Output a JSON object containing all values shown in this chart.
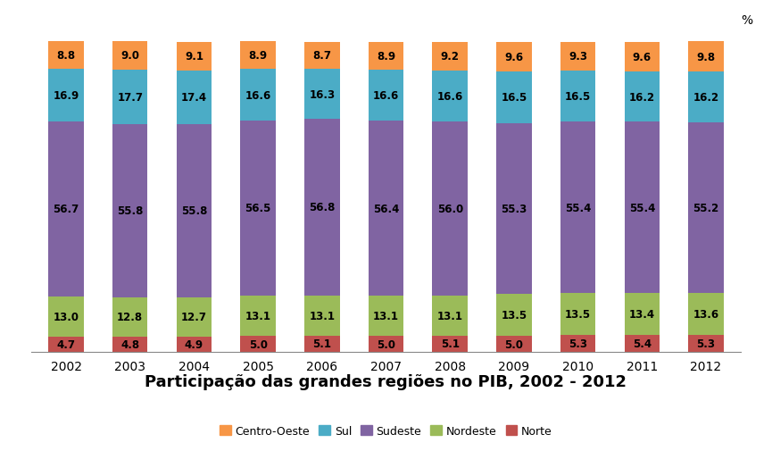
{
  "years": [
    2002,
    2003,
    2004,
    2005,
    2006,
    2007,
    2008,
    2009,
    2010,
    2011,
    2012
  ],
  "norte": [
    4.7,
    4.8,
    4.9,
    5.0,
    5.1,
    5.0,
    5.1,
    5.0,
    5.3,
    5.4,
    5.3
  ],
  "nordeste": [
    13.0,
    12.8,
    12.7,
    13.1,
    13.1,
    13.1,
    13.1,
    13.5,
    13.5,
    13.4,
    13.6
  ],
  "sudeste": [
    56.7,
    55.8,
    55.8,
    56.5,
    56.8,
    56.4,
    56.0,
    55.3,
    55.4,
    55.4,
    55.2
  ],
  "sul": [
    16.9,
    17.7,
    17.4,
    16.6,
    16.3,
    16.6,
    16.6,
    16.5,
    16.5,
    16.2,
    16.2
  ],
  "centro_oeste": [
    8.8,
    9.0,
    9.1,
    8.9,
    8.7,
    8.9,
    9.2,
    9.6,
    9.3,
    9.6,
    9.8
  ],
  "colors": {
    "norte": "#c0504d",
    "nordeste": "#9bbb59",
    "sudeste": "#8064a2",
    "sul": "#4bacc6",
    "centro_oeste": "#f79646"
  },
  "title": "Participação das grandes regiões no PIB, 2002 - 2012",
  "title_fontsize": 13,
  "ylabel": "%",
  "bar_width": 0.55,
  "ylim": [
    0,
    105
  ],
  "background_color": "#ffffff",
  "label_fontsize": 8.5
}
